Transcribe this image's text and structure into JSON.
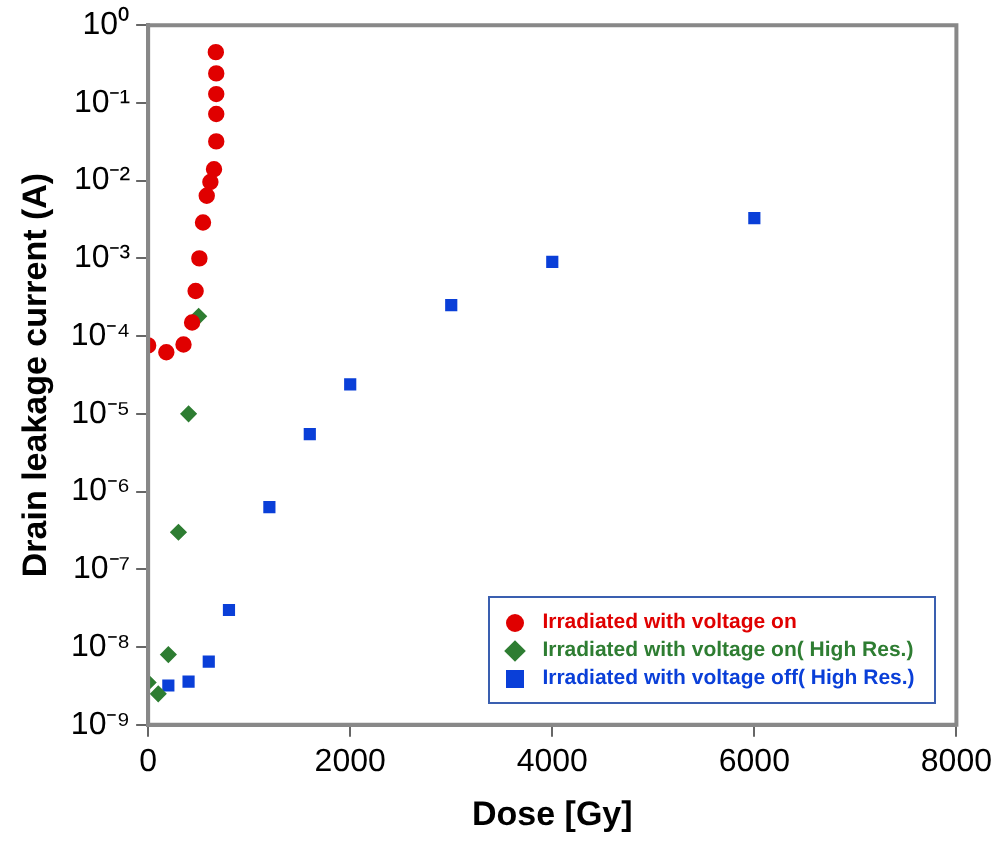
{
  "chart_data": {
    "type": "scatter",
    "xlabel": "Dose [Gy]",
    "ylabel": "Drain leakage current (A)",
    "log": "y",
    "xlim": [
      0,
      8000
    ],
    "xticks": [
      0,
      2000,
      4000,
      6000,
      8000
    ],
    "ylim": [
      1e-09,
      1
    ],
    "yticks": [
      {
        "value": 1e-09,
        "label": "10⁻⁹"
      },
      {
        "value": 1e-08,
        "label": "10⁻⁸"
      },
      {
        "value": 1e-07,
        "label": "10⁻⁷"
      },
      {
        "value": 1e-06,
        "label": "10⁻⁶"
      },
      {
        "value": 1e-05,
        "label": "10⁻⁵"
      },
      {
        "value": 0.0001,
        "label": "10⁻⁴"
      },
      {
        "value": 0.001,
        "label": "10⁻³"
      },
      {
        "value": 0.01,
        "label": "10⁻²"
      },
      {
        "value": 0.1,
        "label": "10⁻¹"
      },
      {
        "value": 1,
        "label": "10⁰"
      }
    ],
    "grid": false,
    "legend": "bottom right",
    "series": [
      {
        "name": "Irradiated with voltage on",
        "color": "#e00000",
        "marker": "circle",
        "x": [
          0,
          180,
          350,
          435,
          470,
          507,
          543,
          580,
          616,
          652,
          674,
          674,
          674,
          674,
          670
        ],
        "values": [
          7.6e-05,
          6.2e-05,
          7.8e-05,
          0.00015,
          0.00038,
          0.001,
          0.0029,
          0.0064,
          0.0096,
          0.014,
          0.032,
          0.072,
          0.13,
          0.24,
          0.45
        ]
      },
      {
        "name": "Irradiated with voltage on( High Res.)",
        "color": "#2e7d32",
        "marker": "diamond",
        "x": [
          0,
          100,
          200,
          300,
          400,
          500
        ],
        "values": [
          3.5e-09,
          2.5e-09,
          8e-09,
          3e-07,
          1e-05,
          0.00018
        ]
      },
      {
        "name": "Irradiated with voltage off( High Res.)",
        "color": "#0a3fd8",
        "marker": "square",
        "x": [
          200,
          400,
          600,
          800,
          1200,
          1600,
          2000,
          3000,
          4000,
          6000
        ],
        "values": [
          3.2e-09,
          3.6e-09,
          6.5e-09,
          3e-08,
          6.3e-07,
          5.5e-06,
          2.4e-05,
          0.00025,
          0.0009,
          0.0033
        ]
      }
    ]
  }
}
